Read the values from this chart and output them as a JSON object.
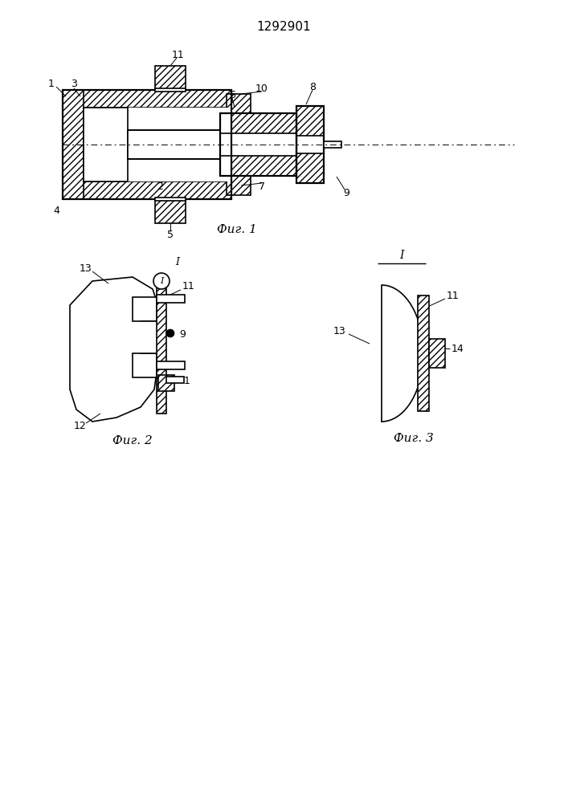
{
  "title": "1292901",
  "fig1_caption": "Фиг. 1",
  "fig2_caption": "Фиг. 2",
  "fig3_caption": "Фиг. 3",
  "bg_color": "#ffffff",
  "line_color": "#000000",
  "fig_size": [
    7.07,
    10.0
  ],
  "dpi": 100
}
